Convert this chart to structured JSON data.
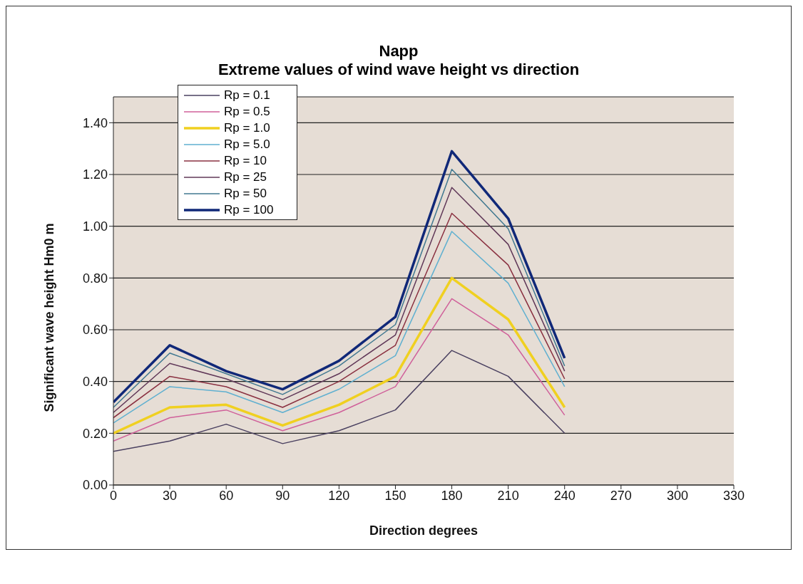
{
  "chart_data": {
    "type": "line",
    "title": "Napp",
    "subtitle": "Extreme values of wind wave height vs direction",
    "xlabel": "Direction degrees",
    "ylabel": "Significant  wave height Hm0 m",
    "x": [
      0,
      30,
      60,
      90,
      120,
      150,
      180,
      210,
      240
    ],
    "series": [
      {
        "name": "Rp = 0.1",
        "color": "#4a4060",
        "values": [
          0.13,
          0.17,
          0.235,
          0.16,
          0.21,
          0.29,
          0.52,
          0.42,
          0.2
        ]
      },
      {
        "name": "Rp = 0.5",
        "color": "#d0609a",
        "values": [
          0.17,
          0.26,
          0.29,
          0.21,
          0.28,
          0.38,
          0.72,
          0.58,
          0.27
        ]
      },
      {
        "name": "Rp = 1.0",
        "color": "#f0d020",
        "values": [
          0.2,
          0.3,
          0.31,
          0.23,
          0.31,
          0.42,
          0.8,
          0.64,
          0.3
        ]
      },
      {
        "name": "Rp = 5.0",
        "color": "#60b0d0",
        "values": [
          0.24,
          0.38,
          0.36,
          0.28,
          0.37,
          0.5,
          0.98,
          0.78,
          0.38
        ]
      },
      {
        "name": "Rp = 10",
        "color": "#8a3040",
        "values": [
          0.26,
          0.42,
          0.38,
          0.3,
          0.4,
          0.54,
          1.05,
          0.85,
          0.41
        ]
      },
      {
        "name": "Rp = 25",
        "color": "#603858",
        "values": [
          0.28,
          0.47,
          0.41,
          0.33,
          0.43,
          0.58,
          1.15,
          0.93,
          0.44
        ]
      },
      {
        "name": "Rp = 50",
        "color": "#407890",
        "values": [
          0.3,
          0.51,
          0.43,
          0.35,
          0.46,
          0.62,
          1.22,
          0.99,
          0.46
        ]
      },
      {
        "name": "Rp = 100",
        "color": "#102878",
        "values": [
          0.32,
          0.54,
          0.44,
          0.37,
          0.48,
          0.65,
          1.29,
          1.03,
          0.49
        ]
      }
    ],
    "xlim": [
      0,
      330
    ],
    "xticks": [
      0,
      30,
      60,
      90,
      120,
      150,
      180,
      210,
      240,
      270,
      300,
      330
    ],
    "ylim": [
      0,
      1.5
    ],
    "yticks": [
      {
        "value": 0,
        "label": "0.00"
      },
      {
        "value": 0.2,
        "label": "0.20"
      },
      {
        "value": 0.4,
        "label": "0.40"
      },
      {
        "value": 0.6,
        "label": "0.60"
      },
      {
        "value": 0.8,
        "label": "0.80"
      },
      {
        "value": 1.0,
        "label": "1.00"
      },
      {
        "value": 1.2,
        "label": "1.20"
      },
      {
        "value": 1.4,
        "label": "1.40"
      }
    ],
    "grid": "y",
    "legend": "top left",
    "marker": "none",
    "line_style": "solid"
  }
}
